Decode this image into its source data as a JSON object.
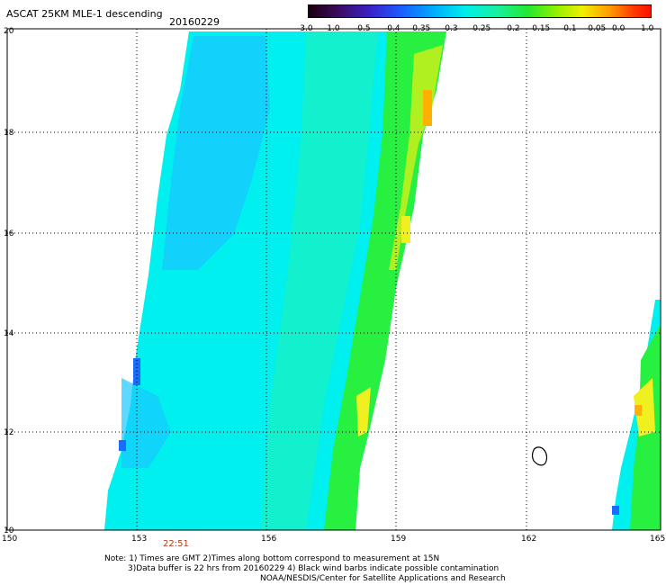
{
  "header": {
    "title": "ASCAT 25KM MLE-1 descending",
    "date": "20160229"
  },
  "colorbar": {
    "labels": [
      "-3.0",
      "-1.0",
      "-0.5",
      "-0.4",
      "-0.35",
      "-0.3",
      "-0.25",
      "-0.2",
      "-0.15",
      "-0.1",
      "-0.05",
      "0.0",
      "1.0"
    ]
  },
  "axes": {
    "lon_labels": [
      "150",
      "153",
      "156",
      "159",
      "162",
      "165"
    ],
    "lat_labels": [
      "20",
      "18",
      "16",
      "14",
      "12",
      "10"
    ]
  },
  "annotations": {
    "swath_time": "22:51"
  },
  "footer": {
    "note1": "Note: 1) Times are GMT 2)Times along bottom correspond to measurement at 15N",
    "note2": "3)Data buffer is 22 hrs from 20160229 4) Black wind barbs indicate possible contamination",
    "note3": "NOAA/NESDIS/Center for Satellite Applications and Research"
  },
  "colors": {
    "cyan": "#00f0f0",
    "light_blue": "#18c8ff",
    "blue": "#1a6cff",
    "seafoam": "#20f0b0",
    "green": "#28f040",
    "yellow_green": "#b0f020",
    "yellow": "#f0f020",
    "orange": "#ffb000",
    "grid": "#000000",
    "swath_time": "#b03a1a"
  }
}
